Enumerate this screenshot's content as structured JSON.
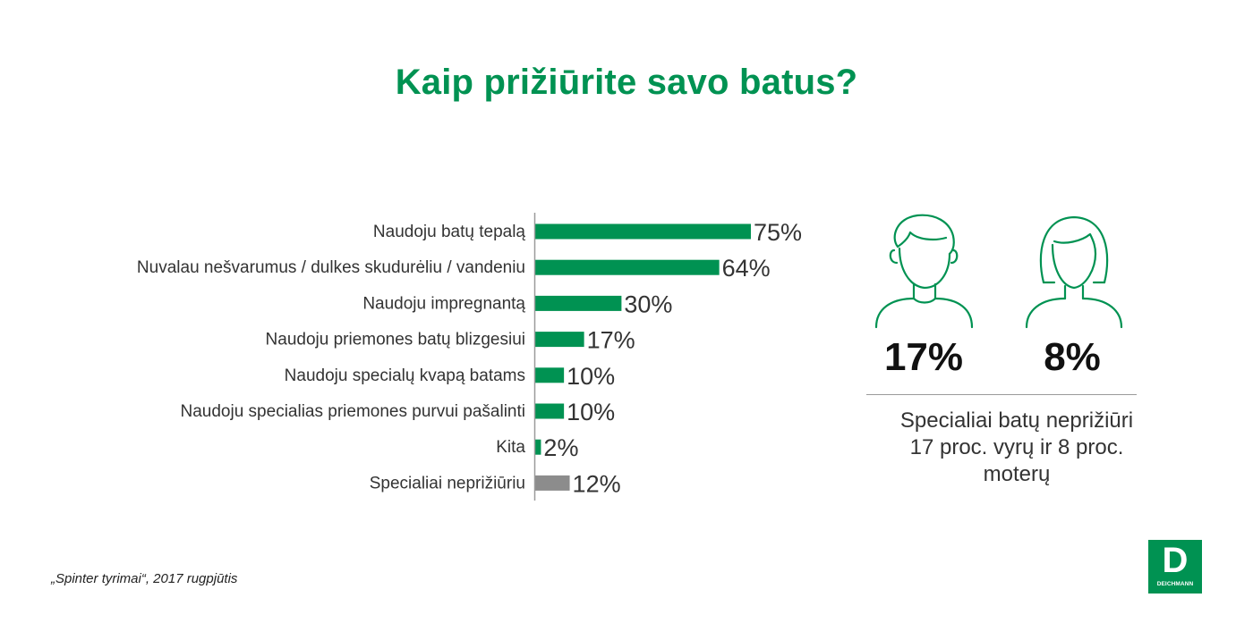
{
  "title": "Kaip  prižiūrite savo batus?",
  "colors": {
    "accent": "#009252",
    "bar_green": "#009252",
    "bar_gray": "#8c8c8c"
  },
  "chart_data": {
    "type": "bar",
    "orientation": "horizontal",
    "categories": [
      "Naudoju batų tepalą",
      "Nuvalau nešvarumus / dulkes skudurėliu / vandeniu",
      "Naudoju impregnantą",
      "Naudoju priemones batų blizgesiui",
      "Naudoju specialų kvapą batams",
      "Naudoju specialias priemones purvui pašalinti",
      "Kita",
      "Specialiai neprižiūriu"
    ],
    "values": [
      75,
      64,
      30,
      17,
      10,
      10,
      2,
      12
    ],
    "value_labels": [
      "75%",
      "64%",
      "30%",
      "17%",
      "10%",
      "10%",
      "2%",
      "12%"
    ],
    "bar_colors": [
      "#009252",
      "#009252",
      "#009252",
      "#009252",
      "#009252",
      "#009252",
      "#009252",
      "#8c8c8c"
    ],
    "title": "",
    "xlabel": "",
    "ylabel": "",
    "xlim": [
      0,
      100
    ],
    "grid": false,
    "legend": "none"
  },
  "side_panel": {
    "men_percent": "17%",
    "women_percent": "8%",
    "men_icon": "man-outline-icon",
    "women_icon": "woman-outline-icon",
    "summary_lines": [
      "Specialiai batų neprižiūri",
      "17 proc. vyrų ir 8 proc.",
      "moterų"
    ]
  },
  "source": "„Spinter tyrimai“, 2017 rugpjūtis",
  "logo": {
    "letter": "D",
    "word": "DEICHMANN"
  }
}
